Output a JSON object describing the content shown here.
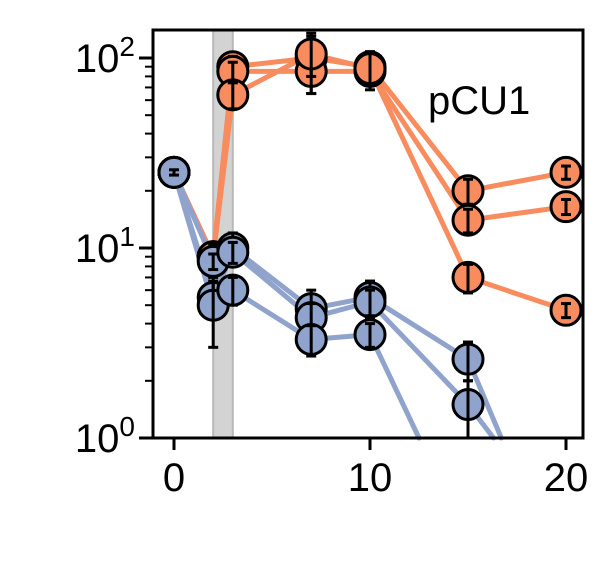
{
  "chart_data": {
    "type": "scatter",
    "annotation": "pCU1",
    "title": "",
    "xlabel": "",
    "ylabel": "",
    "xlim": [
      -1,
      21
    ],
    "ylim": [
      1,
      150
    ],
    "yscale": "log",
    "x_ticks": [
      0,
      10,
      20
    ],
    "x_tick_labels": [
      "0",
      "10",
      "20"
    ],
    "y_ticks": [
      {
        "value": 1,
        "base": "10",
        "exp": "0"
      },
      {
        "value": 10,
        "base": "10",
        "exp": "1"
      },
      {
        "value": 100,
        "base": "10",
        "exp": "2"
      }
    ],
    "shaded_region": {
      "x_range": [
        2,
        3
      ],
      "color": "#d3d3d3"
    },
    "grid": false,
    "legend": "none",
    "colors": {
      "orange": "#f98c5e",
      "blue": "#8fa3cc",
      "shade": "#d3d3d3"
    },
    "series": [
      {
        "color": "orange",
        "x": [
          0,
          2,
          3,
          7,
          10,
          15,
          20
        ],
        "y": [
          25,
          9,
          90,
          100,
          90,
          20,
          25
        ],
        "err": [
          0.8,
          1.5,
          12,
          35,
          15,
          3,
          2
        ]
      },
      {
        "color": "orange",
        "x": [
          0,
          2,
          3,
          7,
          10,
          15,
          20
        ],
        "y": [
          25,
          9,
          85,
          85,
          85,
          14,
          16.5
        ],
        "err": [
          0.8,
          1.5,
          10,
          20,
          12,
          2,
          1.5
        ]
      },
      {
        "color": "orange",
        "x": [
          0,
          2,
          3,
          7,
          10,
          15,
          20
        ],
        "y": [
          25,
          9,
          64,
          105,
          88,
          7,
          4.7
        ],
        "err": [
          0.8,
          1.5,
          10,
          25,
          20,
          1.2,
          0.4
        ]
      },
      {
        "color": "blue",
        "x": [
          0,
          2,
          3,
          7,
          10,
          15,
          16.7
        ],
        "y": [
          25,
          8.5,
          10,
          4.8,
          5.5,
          2.6,
          1
        ],
        "err": [
          0.8,
          0.8,
          2,
          1.2,
          1.2,
          0.6,
          0
        ]
      },
      {
        "color": "blue",
        "x": [
          0,
          2,
          3,
          7,
          10,
          15,
          16.3
        ],
        "y": [
          25,
          5.5,
          9.5,
          4.3,
          5.2,
          1.5,
          1
        ],
        "err": [
          0.8,
          1.2,
          1.2,
          0.8,
          0.8,
          0.5,
          0
        ]
      },
      {
        "color": "blue",
        "x": [
          0,
          2,
          3,
          7,
          10,
          12.5
        ],
        "y": [
          25,
          5.0,
          6.0,
          3.3,
          3.5,
          1
        ],
        "err": [
          0.8,
          2,
          1,
          0.6,
          0.5,
          0
        ]
      }
    ]
  }
}
